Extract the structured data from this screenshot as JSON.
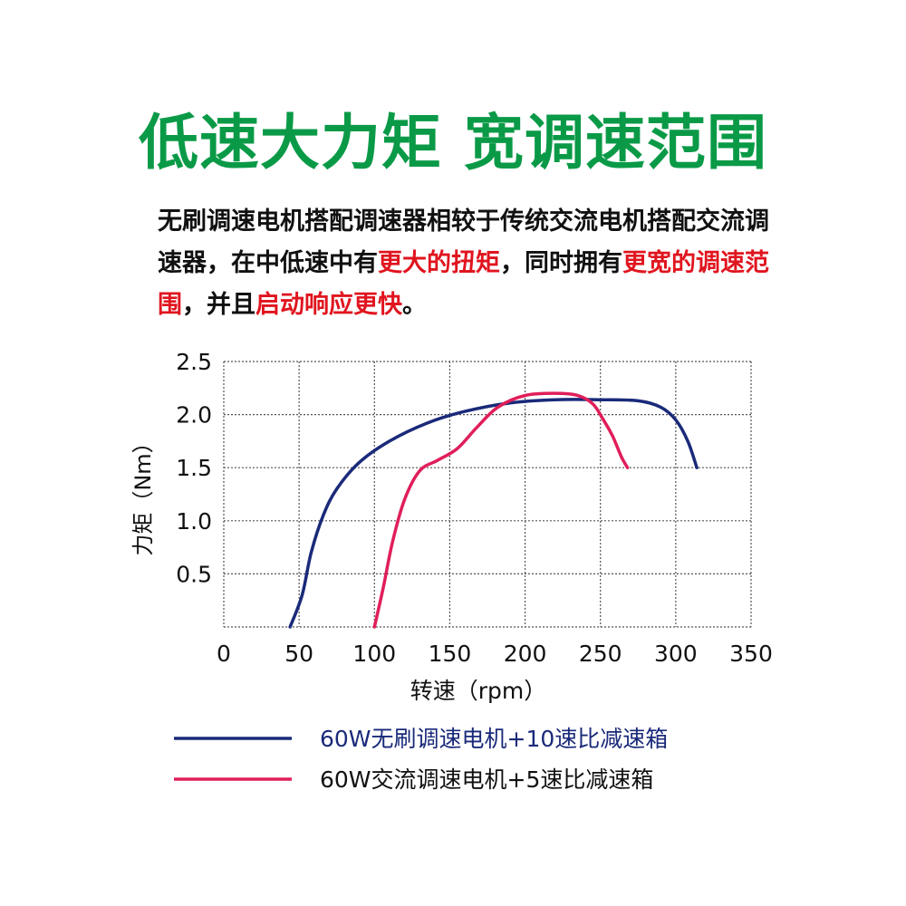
{
  "title": "低速大力矩 宽调速范围",
  "title_color": "#0a9a47",
  "highlight_color": "#e0151f",
  "description": [
    {
      "text": "无刷调速电机搭配调速器相较于传统交流电机搭配交流调速器，在中低速中有",
      "highlight": false
    },
    {
      "text": "更大的扭矩",
      "highlight": true
    },
    {
      "text": "，同时拥有",
      "highlight": false
    },
    {
      "text": "更宽的调速范围",
      "highlight": true
    },
    {
      "text": "，并且",
      "highlight": false
    },
    {
      "text": "启动响应更快",
      "highlight": true
    },
    {
      "text": "。",
      "highlight": false
    }
  ],
  "chart_data": {
    "type": "line",
    "xlabel": "转速（rpm）",
    "ylabel": "力矩（Nm）",
    "xlim": [
      0,
      350
    ],
    "ylim": [
      0,
      2.5
    ],
    "x_ticks": [
      0,
      50,
      100,
      150,
      200,
      250,
      300,
      350
    ],
    "x_tick_labels": [
      "0",
      "50",
      "100",
      "150",
      "200",
      "250",
      "300",
      "350"
    ],
    "y_ticks": [
      0.5,
      1.0,
      1.5,
      2.0,
      2.5
    ],
    "y_tick_labels": [
      "0.5",
      "1.0",
      "1.5",
      "2.0",
      "2.5"
    ],
    "grid": true,
    "legend_position": "bottom",
    "series": [
      {
        "name": "60W无刷调速电机+10速比减速箱",
        "color": "#1a2a7a",
        "label_color": "#1a2a7a",
        "x": [
          44,
          52,
          58,
          66,
          75,
          90,
          110,
          135,
          160,
          190,
          220,
          250,
          275,
          290,
          300,
          308,
          314
        ],
        "y": [
          0,
          0.3,
          0.7,
          1.05,
          1.3,
          1.55,
          1.75,
          1.92,
          2.03,
          2.11,
          2.14,
          2.14,
          2.13,
          2.07,
          1.95,
          1.75,
          1.5
        ]
      },
      {
        "name": "60W交流调速电机+5速比减速箱",
        "color": "#e01e5a",
        "label_color": "#111111",
        "x": [
          100,
          106,
          112,
          120,
          130,
          142,
          155,
          168,
          182,
          200,
          220,
          235,
          245,
          252,
          258,
          264,
          268
        ],
        "y": [
          0,
          0.38,
          0.8,
          1.2,
          1.47,
          1.57,
          1.68,
          1.88,
          2.07,
          2.18,
          2.2,
          2.18,
          2.1,
          1.95,
          1.8,
          1.6,
          1.5
        ]
      }
    ]
  }
}
